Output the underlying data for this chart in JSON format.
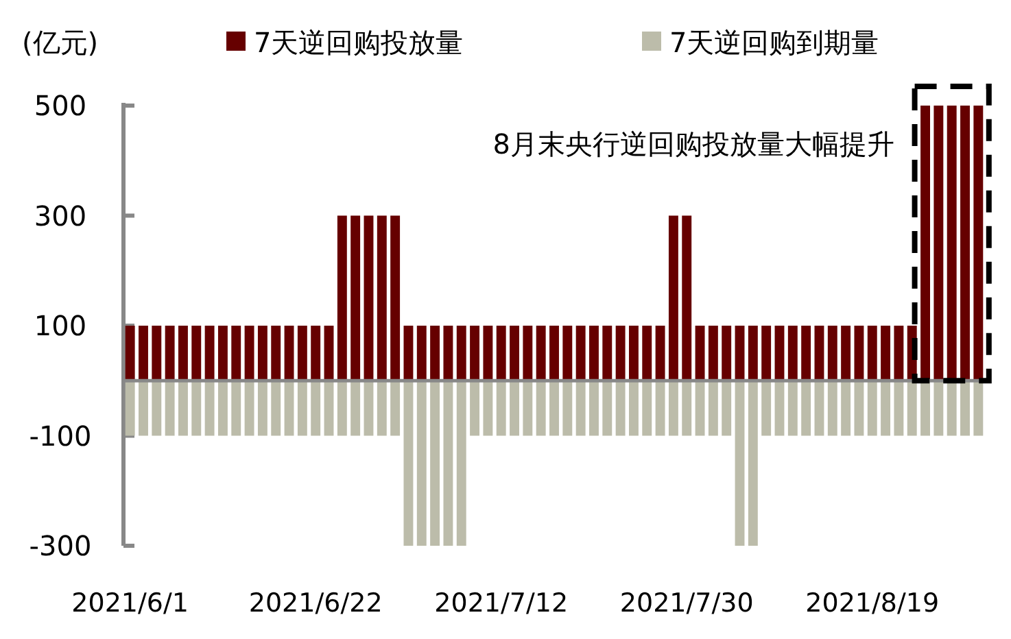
{
  "chart_data": {
    "type": "bar",
    "ylabel": "(亿元)",
    "legend": "top",
    "categories": [
      "2021/6/1",
      null,
      null,
      null,
      null,
      null,
      null,
      null,
      null,
      null,
      null,
      null,
      null,
      null,
      "2021/6/22",
      null,
      null,
      null,
      null,
      null,
      null,
      null,
      null,
      null,
      null,
      null,
      null,
      null,
      "2021/7/12",
      null,
      null,
      null,
      null,
      null,
      null,
      null,
      null,
      null,
      null,
      null,
      null,
      null,
      "2021/7/30",
      null,
      null,
      null,
      null,
      null,
      null,
      null,
      null,
      null,
      null,
      null,
      null,
      null,
      "2021/8/19",
      null,
      null,
      null,
      null,
      null,
      null,
      null,
      null
    ],
    "series": [
      {
        "name": "7天逆回购投放量",
        "color": "#660000",
        "values": [
          100,
          100,
          100,
          100,
          100,
          100,
          100,
          100,
          100,
          100,
          100,
          100,
          100,
          100,
          100,
          100,
          300,
          300,
          300,
          300,
          300,
          100,
          100,
          100,
          100,
          100,
          100,
          100,
          100,
          100,
          100,
          100,
          100,
          100,
          100,
          100,
          100,
          100,
          100,
          100,
          100,
          300,
          300,
          100,
          100,
          100,
          100,
          100,
          100,
          100,
          100,
          100,
          100,
          100,
          100,
          100,
          100,
          100,
          100,
          100,
          500,
          500,
          500,
          500,
          500
        ]
      },
      {
        "name": "7天逆回购到期量",
        "color": "#bcbcaa",
        "values": [
          -100,
          -100,
          -100,
          -100,
          -100,
          -100,
          -100,
          -100,
          -100,
          -100,
          -100,
          -100,
          -100,
          -100,
          -100,
          -100,
          -100,
          -100,
          -100,
          -100,
          -100,
          -300,
          -300,
          -300,
          -300,
          -300,
          -100,
          -100,
          -100,
          -100,
          -100,
          -100,
          -100,
          -100,
          -100,
          -100,
          -100,
          -100,
          -100,
          -100,
          -100,
          -100,
          -100,
          -100,
          -100,
          -100,
          -300,
          -300,
          -100,
          -100,
          -100,
          -100,
          -100,
          -100,
          -100,
          -100,
          -100,
          -100,
          -100,
          -100,
          -100,
          -100,
          -100,
          -100,
          -100
        ]
      }
    ],
    "ylim": [
      -300,
      500
    ],
    "yticks": [
      500,
      300,
      100,
      -100,
      -300
    ],
    "stacked": true,
    "annotations": [
      "8月末央行逆回购投放量大幅提升"
    ]
  }
}
